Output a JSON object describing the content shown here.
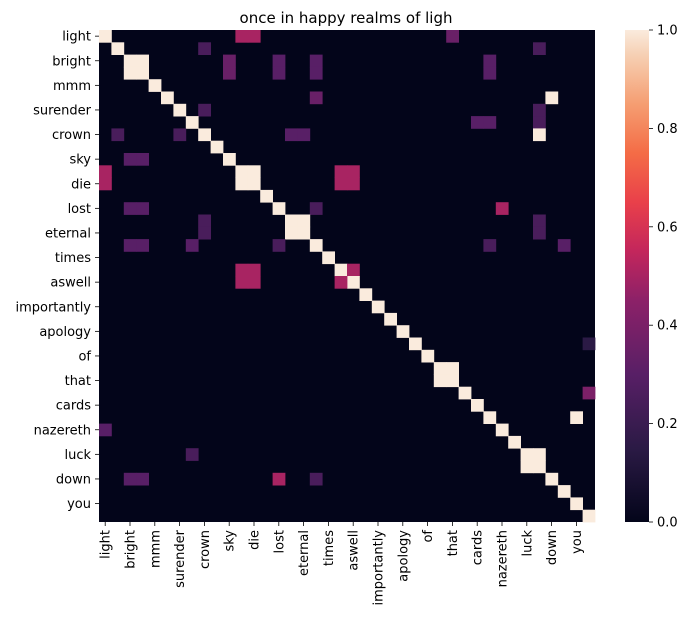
{
  "chart_data": {
    "type": "heatmap",
    "title": "once in happy realms of ligh",
    "xlabel": "",
    "ylabel": "",
    "n": 40,
    "tick_labels": [
      "light",
      "bright",
      "mmm",
      "surender",
      "crown",
      "sky",
      "die",
      "lost",
      "eternal",
      "times",
      "aswell",
      "importantly",
      "apology",
      "of",
      "that",
      "cards",
      "nazereth",
      "luck",
      "down",
      "you"
    ],
    "tick_indices": [
      0,
      2,
      4,
      6,
      8,
      10,
      12,
      14,
      16,
      18,
      20,
      22,
      24,
      26,
      28,
      30,
      32,
      34,
      36,
      38
    ],
    "colorbar": {
      "min": 0.0,
      "max": 1.0,
      "ticks": [
        "0.0",
        "0.2",
        "0.4",
        "0.6",
        "0.8",
        "1.0"
      ]
    },
    "background_value": 0.0,
    "cells": [
      {
        "r": 0,
        "c": 0,
        "v": 1.0
      },
      {
        "r": 0,
        "c": 11,
        "v": 0.5
      },
      {
        "r": 0,
        "c": 12,
        "v": 0.5
      },
      {
        "r": 0,
        "c": 28,
        "v": 0.35
      },
      {
        "r": 1,
        "c": 1,
        "v": 1.0
      },
      {
        "r": 1,
        "c": 8,
        "v": 0.25
      },
      {
        "r": 1,
        "c": 35,
        "v": 0.25
      },
      {
        "r": 2,
        "c": 2,
        "v": 1.0
      },
      {
        "r": 2,
        "c": 3,
        "v": 1.0
      },
      {
        "r": 2,
        "c": 10,
        "v": 0.35
      },
      {
        "r": 2,
        "c": 14,
        "v": 0.3
      },
      {
        "r": 2,
        "c": 17,
        "v": 0.3
      },
      {
        "r": 2,
        "c": 31,
        "v": 0.3
      },
      {
        "r": 3,
        "c": 2,
        "v": 1.0
      },
      {
        "r": 3,
        "c": 3,
        "v": 1.0
      },
      {
        "r": 3,
        "c": 10,
        "v": 0.35
      },
      {
        "r": 3,
        "c": 14,
        "v": 0.3
      },
      {
        "r": 3,
        "c": 17,
        "v": 0.3
      },
      {
        "r": 3,
        "c": 31,
        "v": 0.3
      },
      {
        "r": 4,
        "c": 4,
        "v": 1.0
      },
      {
        "r": 5,
        "c": 5,
        "v": 1.0
      },
      {
        "r": 5,
        "c": 17,
        "v": 0.35
      },
      {
        "r": 5,
        "c": 36,
        "v": 1.0
      },
      {
        "r": 6,
        "c": 6,
        "v": 1.0
      },
      {
        "r": 6,
        "c": 8,
        "v": 0.25
      },
      {
        "r": 6,
        "c": 35,
        "v": 0.25
      },
      {
        "r": 7,
        "c": 7,
        "v": 1.0
      },
      {
        "r": 7,
        "c": 30,
        "v": 0.3
      },
      {
        "r": 7,
        "c": 31,
        "v": 0.3
      },
      {
        "r": 7,
        "c": 35,
        "v": 0.25
      },
      {
        "r": 8,
        "c": 1,
        "v": 0.25
      },
      {
        "r": 8,
        "c": 6,
        "v": 0.25
      },
      {
        "r": 8,
        "c": 8,
        "v": 1.0
      },
      {
        "r": 8,
        "c": 15,
        "v": 0.3
      },
      {
        "r": 8,
        "c": 16,
        "v": 0.3
      },
      {
        "r": 8,
        "c": 35,
        "v": 1.0
      },
      {
        "r": 9,
        "c": 9,
        "v": 1.0
      },
      {
        "r": 10,
        "c": 2,
        "v": 0.3
      },
      {
        "r": 10,
        "c": 3,
        "v": 0.3
      },
      {
        "r": 10,
        "c": 10,
        "v": 1.0
      },
      {
        "r": 11,
        "c": 0,
        "v": 0.5
      },
      {
        "r": 11,
        "c": 11,
        "v": 1.0
      },
      {
        "r": 11,
        "c": 12,
        "v": 1.0
      },
      {
        "r": 11,
        "c": 19,
        "v": 0.5
      },
      {
        "r": 11,
        "c": 20,
        "v": 0.5
      },
      {
        "r": 12,
        "c": 0,
        "v": 0.5
      },
      {
        "r": 12,
        "c": 11,
        "v": 1.0
      },
      {
        "r": 12,
        "c": 12,
        "v": 1.0
      },
      {
        "r": 12,
        "c": 19,
        "v": 0.5
      },
      {
        "r": 12,
        "c": 20,
        "v": 0.5
      },
      {
        "r": 13,
        "c": 13,
        "v": 1.0
      },
      {
        "r": 14,
        "c": 2,
        "v": 0.3
      },
      {
        "r": 14,
        "c": 3,
        "v": 0.3
      },
      {
        "r": 14,
        "c": 14,
        "v": 1.0
      },
      {
        "r": 14,
        "c": 17,
        "v": 0.25
      },
      {
        "r": 14,
        "c": 32,
        "v": 0.5
      },
      {
        "r": 15,
        "c": 15,
        "v": 1.0
      },
      {
        "r": 15,
        "c": 16,
        "v": 1.0
      },
      {
        "r": 15,
        "c": 8,
        "v": 0.25
      },
      {
        "r": 15,
        "c": 35,
        "v": 0.25
      },
      {
        "r": 16,
        "c": 15,
        "v": 1.0
      },
      {
        "r": 16,
        "c": 16,
        "v": 1.0
      },
      {
        "r": 16,
        "c": 8,
        "v": 0.25
      },
      {
        "r": 16,
        "c": 35,
        "v": 0.25
      },
      {
        "r": 17,
        "c": 2,
        "v": 0.3
      },
      {
        "r": 17,
        "c": 3,
        "v": 0.3
      },
      {
        "r": 17,
        "c": 7,
        "v": 0.3
      },
      {
        "r": 17,
        "c": 14,
        "v": 0.25
      },
      {
        "r": 17,
        "c": 17,
        "v": 1.0
      },
      {
        "r": 17,
        "c": 31,
        "v": 0.25
      },
      {
        "r": 17,
        "c": 37,
        "v": 0.3
      },
      {
        "r": 18,
        "c": 18,
        "v": 1.0
      },
      {
        "r": 19,
        "c": 11,
        "v": 0.5
      },
      {
        "r": 19,
        "c": 12,
        "v": 0.5
      },
      {
        "r": 19,
        "c": 19,
        "v": 1.0
      },
      {
        "r": 19,
        "c": 20,
        "v": 0.5
      },
      {
        "r": 20,
        "c": 11,
        "v": 0.5
      },
      {
        "r": 20,
        "c": 12,
        "v": 0.5
      },
      {
        "r": 20,
        "c": 20,
        "v": 1.0
      },
      {
        "r": 20,
        "c": 19,
        "v": 0.5
      },
      {
        "r": 21,
        "c": 21,
        "v": 1.0
      },
      {
        "r": 22,
        "c": 22,
        "v": 1.0
      },
      {
        "r": 23,
        "c": 23,
        "v": 1.0
      },
      {
        "r": 24,
        "c": 24,
        "v": 1.0
      },
      {
        "r": 25,
        "c": 25,
        "v": 1.0
      },
      {
        "r": 25,
        "c": 39,
        "v": 0.15
      },
      {
        "r": 26,
        "c": 26,
        "v": 1.0
      },
      {
        "r": 27,
        "c": 27,
        "v": 1.0
      },
      {
        "r": 27,
        "c": 28,
        "v": 1.0
      },
      {
        "r": 28,
        "c": 27,
        "v": 1.0
      },
      {
        "r": 28,
        "c": 28,
        "v": 1.0
      },
      {
        "r": 29,
        "c": 29,
        "v": 1.0
      },
      {
        "r": 29,
        "c": 39,
        "v": 0.4
      },
      {
        "r": 30,
        "c": 30,
        "v": 1.0
      },
      {
        "r": 31,
        "c": 31,
        "v": 1.0
      },
      {
        "r": 31,
        "c": 38,
        "v": 1.0
      },
      {
        "r": 32,
        "c": 0,
        "v": 0.3
      },
      {
        "r": 32,
        "c": 32,
        "v": 1.0
      },
      {
        "r": 33,
        "c": 33,
        "v": 1.0
      },
      {
        "r": 34,
        "c": 7,
        "v": 0.25
      },
      {
        "r": 34,
        "c": 34,
        "v": 1.0
      },
      {
        "r": 34,
        "c": 35,
        "v": 1.0
      },
      {
        "r": 35,
        "c": 34,
        "v": 1.0
      },
      {
        "r": 35,
        "c": 35,
        "v": 1.0
      },
      {
        "r": 36,
        "c": 2,
        "v": 0.3
      },
      {
        "r": 36,
        "c": 3,
        "v": 0.3
      },
      {
        "r": 36,
        "c": 14,
        "v": 0.5
      },
      {
        "r": 36,
        "c": 17,
        "v": 0.25
      },
      {
        "r": 36,
        "c": 36,
        "v": 1.0
      },
      {
        "r": 37,
        "c": 37,
        "v": 1.0
      },
      {
        "r": 38,
        "c": 38,
        "v": 1.0
      },
      {
        "r": 39,
        "c": 39,
        "v": 1.0
      }
    ]
  }
}
